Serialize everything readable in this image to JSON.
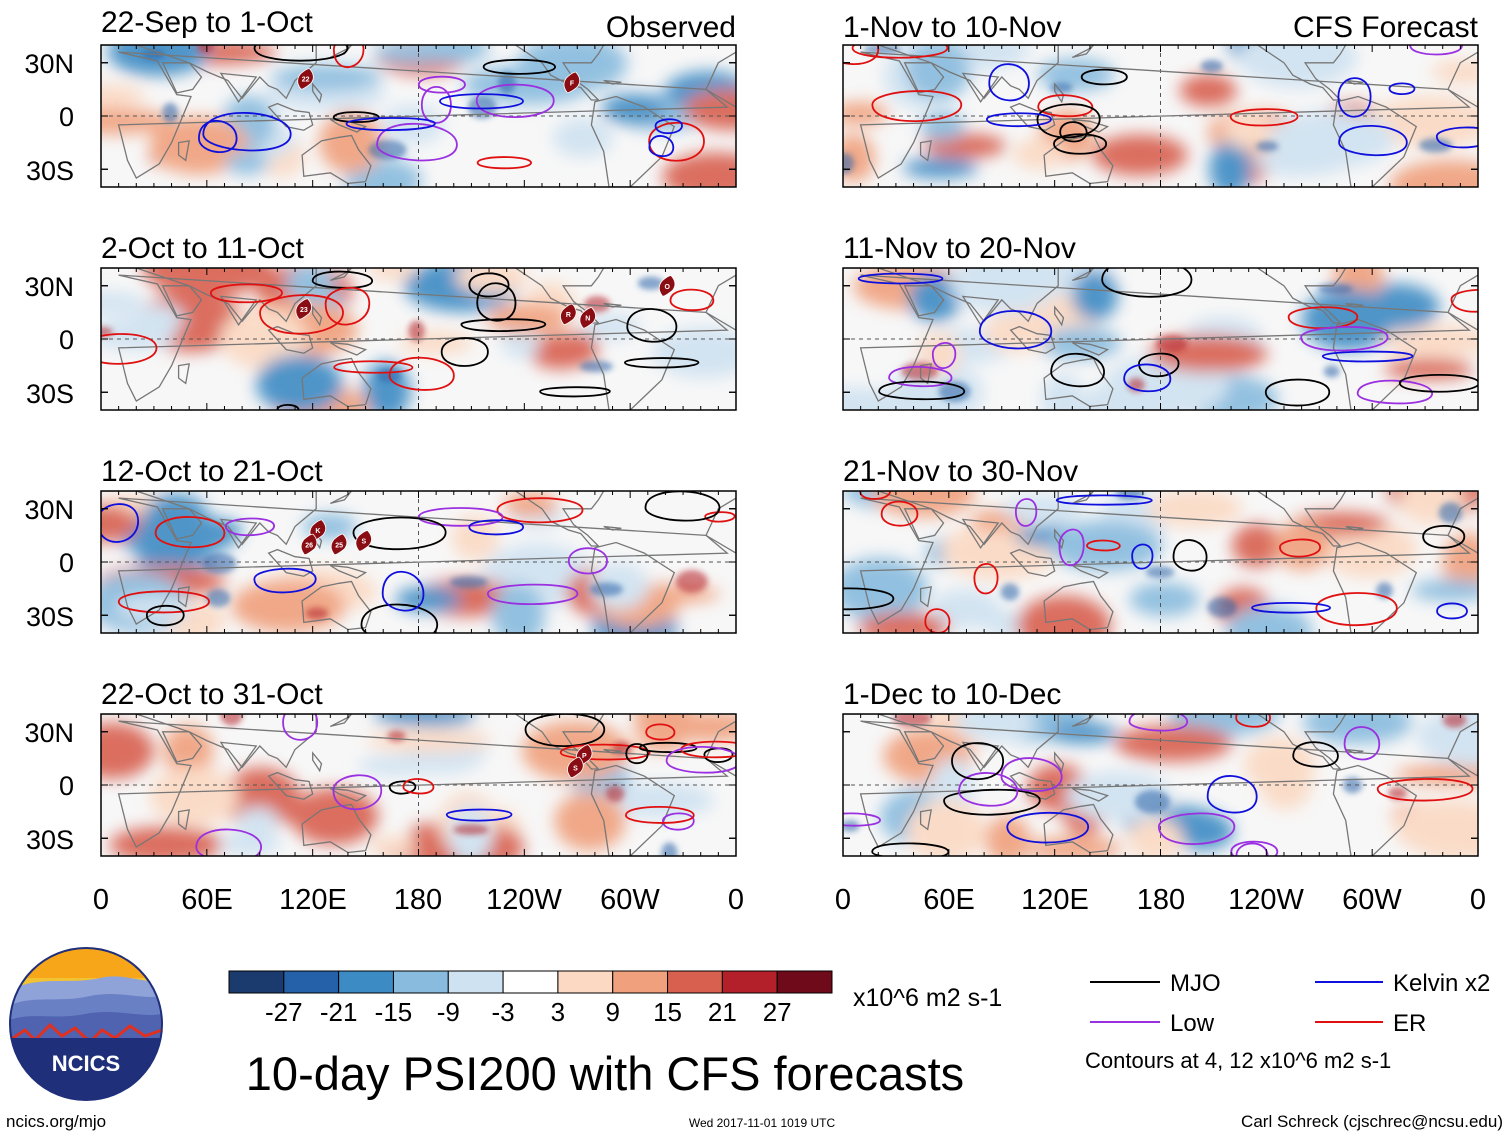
{
  "panels_left": [
    {
      "date_label": "22-Sep to 1-Oct",
      "corner_label": "Observed"
    },
    {
      "date_label": "2-Oct to 11-Oct"
    },
    {
      "date_label": "12-Oct to 21-Oct"
    },
    {
      "date_label": "22-Oct to 31-Oct"
    }
  ],
  "panels_right": [
    {
      "date_label": "1-Nov to 10-Nov",
      "corner_label": "CFS Forecast"
    },
    {
      "date_label": "11-Nov to 20-Nov"
    },
    {
      "date_label": "21-Nov to 30-Nov"
    },
    {
      "date_label": "1-Dec to 10-Dec"
    }
  ],
  "lat_labels": [
    "30N",
    "0",
    "30S"
  ],
  "lon_labels": [
    "0",
    "60E",
    "120E",
    "180",
    "120W",
    "60W",
    "0"
  ],
  "colorbar": {
    "colors": [
      "#1b3b6e",
      "#2561a8",
      "#3d8bc4",
      "#88bbde",
      "#cfe2f1",
      "#ffffff",
      "#fbd9c3",
      "#f0a07d",
      "#d8604f",
      "#b3202a",
      "#6f0a1a"
    ],
    "labels": [
      "-27",
      "-21",
      "-15",
      "-9",
      "-3",
      "3",
      "9",
      "15",
      "21",
      "27"
    ],
    "units": "x10^6 m2 s-1"
  },
  "legend": {
    "items": [
      {
        "label": "MJO",
        "color": "#000000"
      },
      {
        "label": "Kelvin x2",
        "color": "#1010dd"
      },
      {
        "label": "Low",
        "color": "#9a30e0"
      },
      {
        "label": "ER",
        "color": "#e01010"
      }
    ],
    "note": "Contours at 4, 12 x10^6 m2 s-1"
  },
  "title": "10-day PSI200 with CFS forecasts",
  "logo_text": "NCICS",
  "footer": {
    "url": "ncics.org/mjo",
    "timestamp": "Wed 2017-11-01 1019 UTC",
    "author": "Carl Schreck (cjschrec@ncsu.edu)"
  },
  "storm_markers": [
    {
      "panel": 0,
      "lon": 116,
      "lat": 21,
      "label": "22"
    },
    {
      "panel": 0,
      "lon": 267,
      "lat": 19,
      "label": "F"
    },
    {
      "panel": 1,
      "lon": 115,
      "lat": 17,
      "label": "23"
    },
    {
      "panel": 1,
      "lon": 265,
      "lat": 14,
      "label": "R"
    },
    {
      "panel": 1,
      "lon": 276,
      "lat": 12,
      "label": "N"
    },
    {
      "panel": 1,
      "lon": 321,
      "lat": 30,
      "label": "O"
    },
    {
      "panel": 2,
      "lon": 123,
      "lat": 18,
      "label": "K"
    },
    {
      "panel": 2,
      "lon": 118,
      "lat": 10,
      "label": "26"
    },
    {
      "panel": 2,
      "lon": 135,
      "lat": 10,
      "label": "25"
    },
    {
      "panel": 2,
      "lon": 149,
      "lat": 12,
      "label": "S"
    },
    {
      "panel": 3,
      "lon": 274,
      "lat": 17,
      "label": "P"
    },
    {
      "panel": 3,
      "lon": 269,
      "lat": 10,
      "label": "S"
    }
  ]
}
